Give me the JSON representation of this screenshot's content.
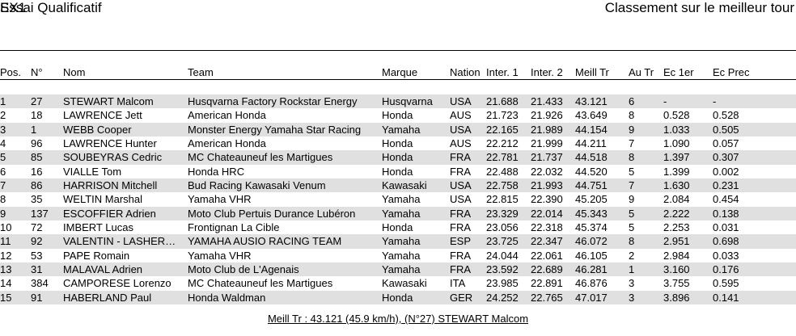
{
  "header": {
    "class_title": "SX1",
    "session_title": "Essai Qualificatif",
    "ranking_title": "Classement sur le meilleur tour"
  },
  "colors": {
    "row_alt_background": "#e0e0e0",
    "text": "#000000",
    "rule": "#000000"
  },
  "table": {
    "columns": [
      {
        "key": "pos",
        "label": "Pos."
      },
      {
        "key": "num",
        "label": "N°"
      },
      {
        "key": "nom",
        "label": "Nom"
      },
      {
        "key": "team",
        "label": "Team"
      },
      {
        "key": "marque",
        "label": "Marque"
      },
      {
        "key": "nation",
        "label": "Nation"
      },
      {
        "key": "inter1",
        "label": "Inter. 1"
      },
      {
        "key": "inter2",
        "label": "Inter. 2"
      },
      {
        "key": "meill_tr",
        "label": "Meill Tr"
      },
      {
        "key": "au_tr",
        "label": "Au Tr"
      },
      {
        "key": "ec_1er",
        "label": "Ec 1er"
      },
      {
        "key": "ec_prec",
        "label": "Ec Prec"
      }
    ],
    "rows": [
      {
        "pos": "1",
        "num": "27",
        "nom": "STEWART Malcom",
        "team": "Husqvarna Factory Rockstar Energy",
        "marque": "Husqvarna",
        "nation": "USA",
        "inter1": "21.688",
        "inter2": "21.433",
        "meill_tr": "43.121",
        "au_tr": "6",
        "ec_1er": "-",
        "ec_prec": "-"
      },
      {
        "pos": "2",
        "num": "18",
        "nom": "LAWRENCE Jett",
        "team": "American Honda",
        "marque": "Honda",
        "nation": "AUS",
        "inter1": "21.723",
        "inter2": "21.926",
        "meill_tr": "43.649",
        "au_tr": "8",
        "ec_1er": "0.528",
        "ec_prec": "0.528"
      },
      {
        "pos": "3",
        "num": "1",
        "nom": "WEBB Cooper",
        "team": "Monster Energy Yamaha Star Racing",
        "marque": "Yamaha",
        "nation": "USA",
        "inter1": "22.165",
        "inter2": "21.989",
        "meill_tr": "44.154",
        "au_tr": "9",
        "ec_1er": "1.033",
        "ec_prec": "0.505"
      },
      {
        "pos": "4",
        "num": "96",
        "nom": "LAWRENCE Hunter",
        "team": "American Honda",
        "marque": "Honda",
        "nation": "AUS",
        "inter1": "22.212",
        "inter2": "21.999",
        "meill_tr": "44.211",
        "au_tr": "7",
        "ec_1er": "1.090",
        "ec_prec": "0.057"
      },
      {
        "pos": "5",
        "num": "85",
        "nom": "SOUBEYRAS Cedric",
        "team": "MC Chateauneuf les Martigues",
        "marque": "Honda",
        "nation": "FRA",
        "inter1": "22.781",
        "inter2": "21.737",
        "meill_tr": "44.518",
        "au_tr": "8",
        "ec_1er": "1.397",
        "ec_prec": "0.307"
      },
      {
        "pos": "6",
        "num": "16",
        "nom": "VIALLE Tom",
        "team": "Honda HRC",
        "marque": "Honda",
        "nation": "FRA",
        "inter1": "22.488",
        "inter2": "22.032",
        "meill_tr": "44.520",
        "au_tr": "5",
        "ec_1er": "1.399",
        "ec_prec": "0.002"
      },
      {
        "pos": "7",
        "num": "86",
        "nom": "HARRISON Mitchell",
        "team": "Bud Racing Kawasaki Venum",
        "marque": "Kawasaki",
        "nation": "USA",
        "inter1": "22.758",
        "inter2": "21.993",
        "meill_tr": "44.751",
        "au_tr": "7",
        "ec_1er": "1.630",
        "ec_prec": "0.231"
      },
      {
        "pos": "8",
        "num": "35",
        "nom": "WELTIN Marshal",
        "team": "Yamaha VHR",
        "marque": "Yamaha",
        "nation": "USA",
        "inter1": "22.815",
        "inter2": "22.390",
        "meill_tr": "45.205",
        "au_tr": "9",
        "ec_1er": "2.084",
        "ec_prec": "0.454"
      },
      {
        "pos": "9",
        "num": "137",
        "nom": "ESCOFFIER Adrien",
        "team": "Moto Club Pertuis Durance Lubéron",
        "marque": "Yamaha",
        "nation": "FRA",
        "inter1": "23.329",
        "inter2": "22.014",
        "meill_tr": "45.343",
        "au_tr": "5",
        "ec_1er": "2.222",
        "ec_prec": "0.138"
      },
      {
        "pos": "10",
        "num": "72",
        "nom": "IMBERT Lucas",
        "team": "Frontignan La Cible",
        "marque": "Honda",
        "nation": "FRA",
        "inter1": "23.056",
        "inter2": "22.318",
        "meill_tr": "45.374",
        "au_tr": "5",
        "ec_1er": "2.253",
        "ec_prec": "0.031"
      },
      {
        "pos": "11",
        "num": "92",
        "nom": "VALENTIN - LASHER…",
        "team": "YAMAHA AUSIO RACING TEAM",
        "marque": "Yamaha",
        "nation": "ESP",
        "inter1": "23.725",
        "inter2": "22.347",
        "meill_tr": "46.072",
        "au_tr": "8",
        "ec_1er": "2.951",
        "ec_prec": "0.698"
      },
      {
        "pos": "12",
        "num": "53",
        "nom": "PAPE Romain",
        "team": "Yamaha VHR",
        "marque": "Yamaha",
        "nation": "FRA",
        "inter1": "24.044",
        "inter2": "22.061",
        "meill_tr": "46.105",
        "au_tr": "2",
        "ec_1er": "2.984",
        "ec_prec": "0.033"
      },
      {
        "pos": "13",
        "num": "31",
        "nom": "MALAVAL Adrien",
        "team": "Moto Club de L'Agenais",
        "marque": "Yamaha",
        "nation": "FRA",
        "inter1": "23.592",
        "inter2": "22.689",
        "meill_tr": "46.281",
        "au_tr": "1",
        "ec_1er": "3.160",
        "ec_prec": "0.176"
      },
      {
        "pos": "14",
        "num": "384",
        "nom": "CAMPORESE Lorenzo",
        "team": "MC Chateauneuf les Martigues",
        "marque": "Kawasaki",
        "nation": "ITA",
        "inter1": "23.985",
        "inter2": "22.891",
        "meill_tr": "46.876",
        "au_tr": "3",
        "ec_1er": "3.755",
        "ec_prec": "0.595"
      },
      {
        "pos": "15",
        "num": "91",
        "nom": "HABERLAND Paul",
        "team": "Honda Waldman",
        "marque": "Honda",
        "nation": "GER",
        "inter1": "24.252",
        "inter2": "22.765",
        "meill_tr": "47.017",
        "au_tr": "3",
        "ec_1er": "3.896",
        "ec_prec": "0.141"
      }
    ]
  },
  "footer": {
    "best_lap_summary": "Meill Tr : 43.121 (45.9 km/h), (N°27) STEWART Malcom"
  }
}
